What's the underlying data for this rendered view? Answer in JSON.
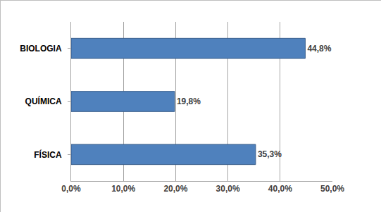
{
  "chart_data": {
    "type": "bar",
    "orientation": "horizontal",
    "categories": [
      "FÍSICA",
      "QUÍMICA",
      "BIOLOGIA"
    ],
    "values": [
      35.3,
      19.8,
      44.8
    ],
    "value_labels": [
      "35,3%",
      "19,8%",
      "44,8%"
    ],
    "color": "#4f81bd",
    "xlim": [
      0,
      50
    ],
    "xticks": [
      {
        "value": 0,
        "label": "0,0%"
      },
      {
        "value": 10,
        "label": "10,0%"
      },
      {
        "value": 20,
        "label": "20,0%"
      },
      {
        "value": 30,
        "label": "30,0%"
      },
      {
        "value": 40,
        "label": "40,0%"
      },
      {
        "value": 50,
        "label": "50,0%"
      }
    ],
    "grid": true,
    "data_labels": true
  }
}
